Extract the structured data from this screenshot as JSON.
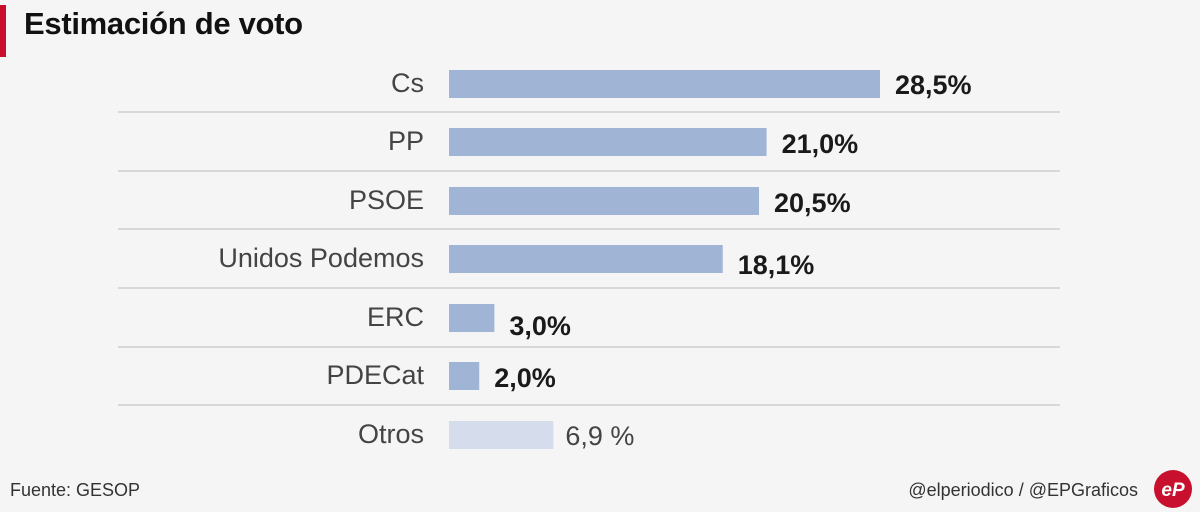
{
  "title": "Estimación de voto",
  "source": "Fuente: GESOP",
  "credit": "@elperiodico / @EPGraficos",
  "logo": {
    "icon": "elperiodico-logo-icon",
    "text": "eP",
    "color": "#c8102e"
  },
  "colors": {
    "bar": "#a0b4d6",
    "bar_other": "#d5dded",
    "divider": "#c8c8c8",
    "accent": "#c8102e"
  },
  "chart_data": {
    "type": "bar",
    "orientation": "horizontal",
    "title": "Estimación de voto",
    "unit": "%",
    "grid": false,
    "legend": "none",
    "categories": [
      "Cs",
      "PP",
      "PSOE",
      "Unidos Podemos",
      "ERC",
      "PDECat",
      "Otros"
    ],
    "values": [
      28.5,
      21.0,
      20.5,
      18.1,
      3.0,
      2.0,
      6.9
    ],
    "labels": [
      "28,5%",
      "21,0%",
      "20,5%",
      "18,1%",
      "3,0%",
      "2,0%",
      "6,9 %"
    ]
  }
}
